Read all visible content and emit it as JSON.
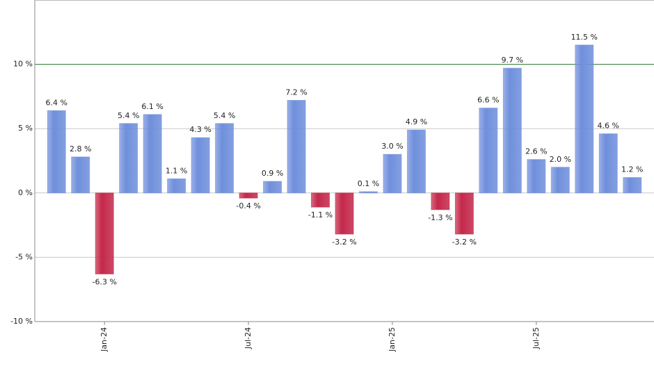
{
  "chart_data": {
    "type": "bar",
    "categories": [
      null,
      null,
      "Jan-24",
      null,
      null,
      null,
      null,
      null,
      "Jul-24",
      null,
      null,
      null,
      null,
      null,
      "Jan-25",
      null,
      null,
      null,
      null,
      null,
      "Jul-25",
      null,
      null,
      null,
      null
    ],
    "values": [
      6.4,
      2.8,
      -6.3,
      5.4,
      6.1,
      1.1,
      4.3,
      5.4,
      -0.4,
      0.9,
      7.2,
      -1.1,
      -3.2,
      0.1,
      3.0,
      4.9,
      -1.3,
      -3.2,
      6.6,
      9.7,
      2.6,
      2.0,
      11.5,
      4.6,
      1.2
    ],
    "value_labels": [
      "6.4 %",
      "2.8 %",
      "-6.3 %",
      "5.4 %",
      "6.1 %",
      "1.1 %",
      "4.3 %",
      "5.4 %",
      "-0.4 %",
      "0.9 %",
      "7.2 %",
      "-1.1 %",
      "-3.2 %",
      "0.1 %",
      "3.0 %",
      "4.9 %",
      "-1.3 %",
      "-3.2 %",
      "6.6 %",
      "9.7 %",
      "2.6 %",
      "2.0 %",
      "11.5 %",
      "4.6 %",
      "1.2 %"
    ],
    "positive_color": "#6f8fdc",
    "negative_color": "#c4284a",
    "ylim": [
      -10,
      15
    ],
    "yticks": [
      {
        "value": -10,
        "label": "-10 %"
      },
      {
        "value": -5,
        "label": "-5 %"
      },
      {
        "value": 0,
        "label": "0 %"
      },
      {
        "value": 5,
        "label": "5 %"
      },
      {
        "value": 10,
        "label": "10 %"
      }
    ],
    "grid": true,
    "reference_line": {
      "value": 10,
      "color": "#2e7d32"
    }
  }
}
